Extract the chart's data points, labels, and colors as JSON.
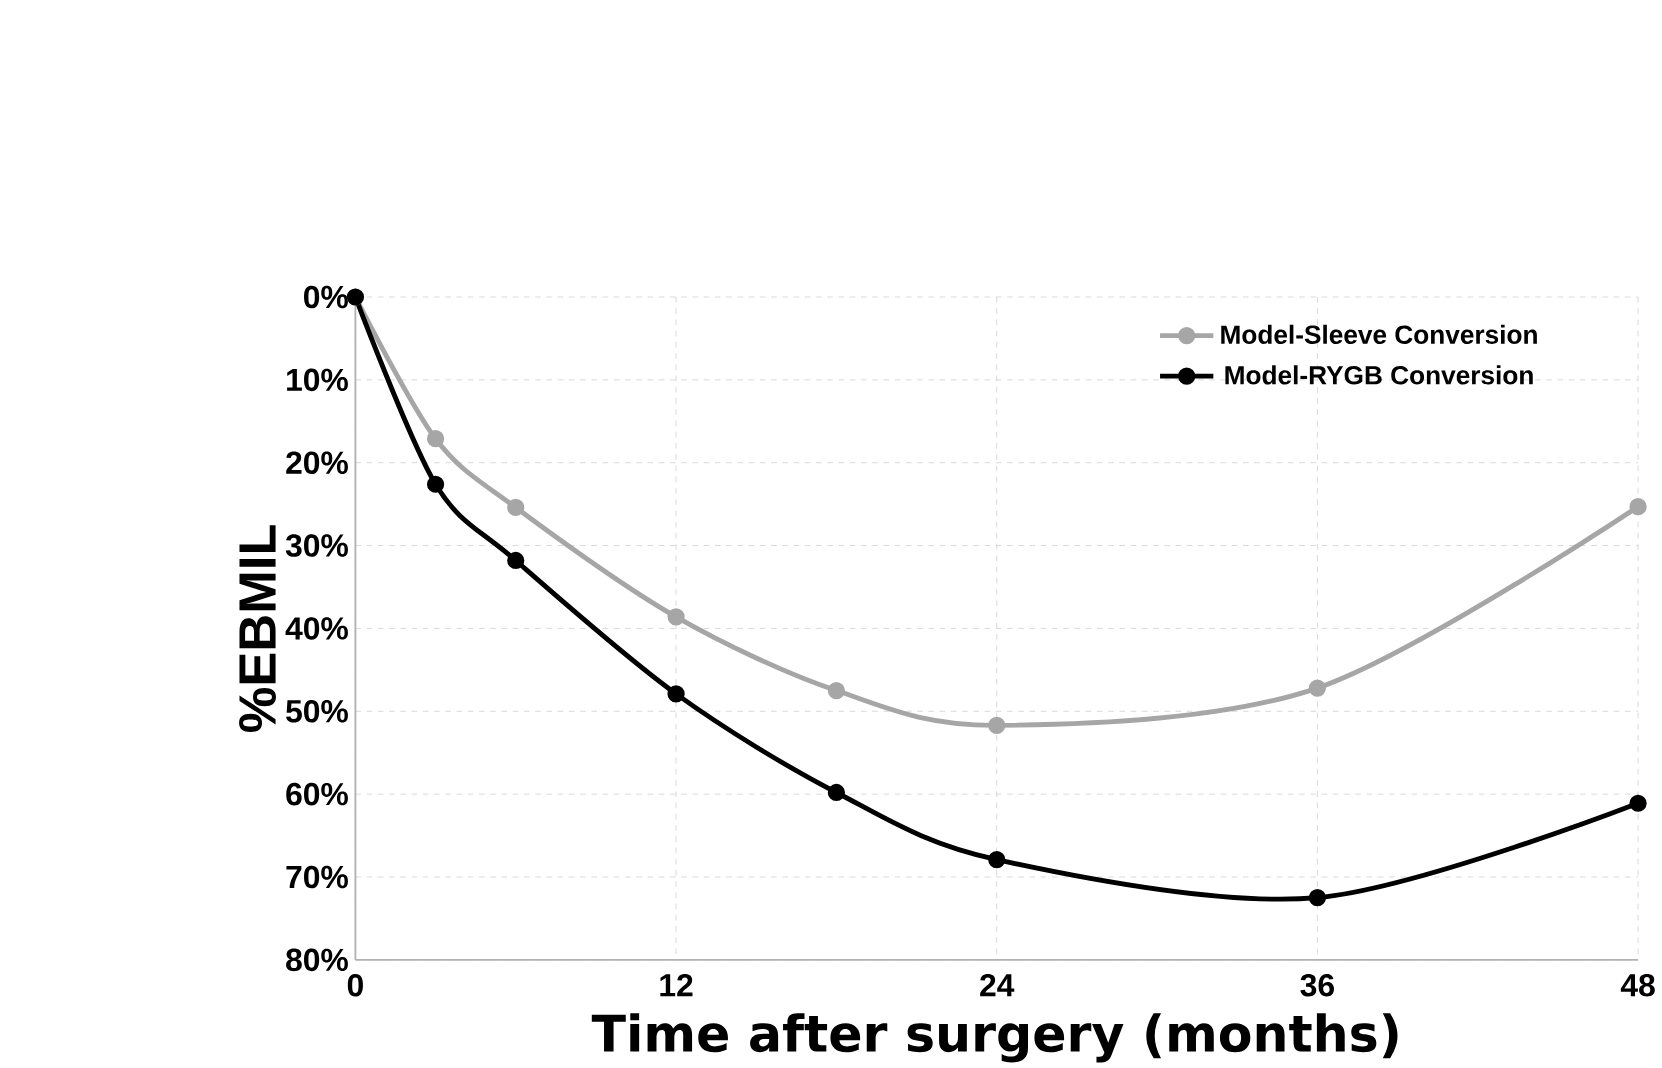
{
  "chart_data": {
    "type": "line",
    "xlabel": "Time after surgery (months)",
    "ylabel": "%EBMIL",
    "x": [
      0,
      3,
      6,
      12,
      18,
      24,
      36,
      48
    ],
    "series": [
      {
        "name": "Model-Sleeve Conversion",
        "color": "#a6a6a6",
        "values": [
          0,
          17.1,
          25.4,
          38.6,
          47.5,
          51.7,
          47.2,
          25.3
        ]
      },
      {
        "name": "Model-RYGB Conversion",
        "color": "#000000",
        "values": [
          0,
          22.6,
          31.8,
          47.9,
          59.8,
          67.9,
          72.5,
          61.1
        ]
      }
    ],
    "xlim": [
      0,
      48
    ],
    "xticks": [
      0,
      12,
      24,
      36,
      48
    ],
    "ylim": [
      80,
      0
    ],
    "yticks": [
      {
        "value": 0,
        "label": "0%"
      },
      {
        "value": 10,
        "label": "10%"
      },
      {
        "value": 20,
        "label": "20%"
      },
      {
        "value": 30,
        "label": "30%"
      },
      {
        "value": 40,
        "label": "40%"
      },
      {
        "value": 50,
        "label": "50%"
      },
      {
        "value": 60,
        "label": "60%"
      },
      {
        "value": 70,
        "label": "70%"
      },
      {
        "value": 80,
        "label": "80%"
      }
    ],
    "grid": true,
    "legend": "top right",
    "marker": "circle"
  }
}
